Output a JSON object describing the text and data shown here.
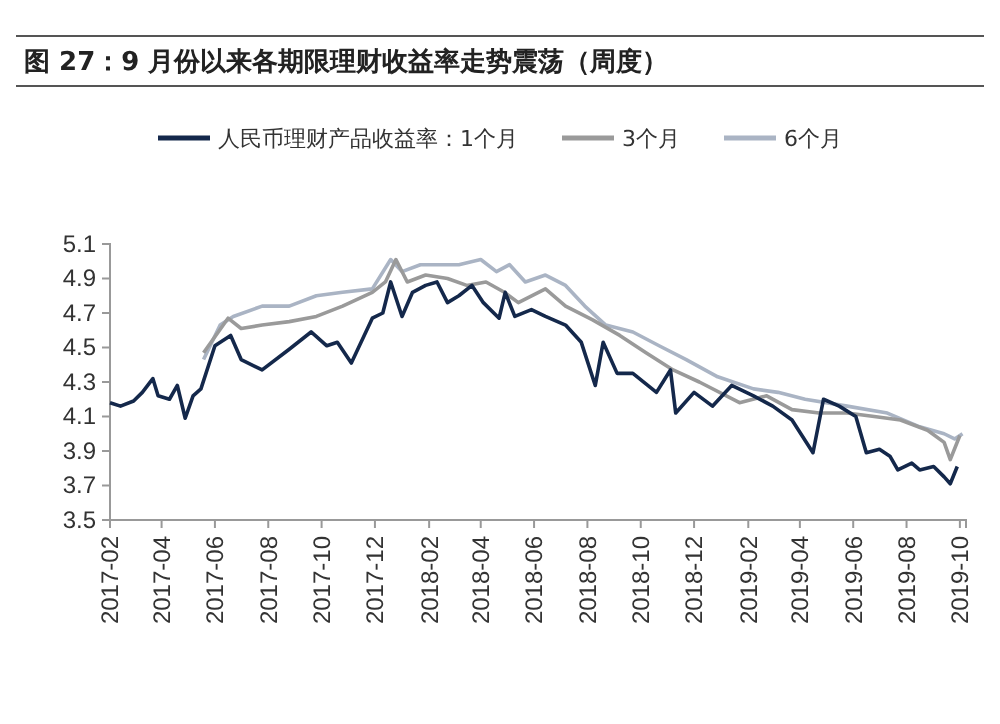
{
  "chart_data": {
    "type": "line",
    "title": "图 27：9 月份以来各期限理财收益率走势震荡（周度）",
    "legend": "top",
    "grid": false,
    "marker": "none",
    "line_style": "solid",
    "xlim": [
      "2017-02-01",
      "2019-10-08"
    ],
    "xticks": [
      "2017-02",
      "2017-04",
      "2017-06",
      "2017-08",
      "2017-10",
      "2017-12",
      "2018-02",
      "2018-04",
      "2018-06",
      "2018-08",
      "2018-10",
      "2018-12",
      "2019-02",
      "2019-04",
      "2019-06",
      "2019-08",
      "2019-10"
    ],
    "ylim": [
      3.5,
      5.1
    ],
    "yticks": [
      3.5,
      3.7,
      3.9,
      4.1,
      4.3,
      4.5,
      4.7,
      4.9,
      5.1
    ],
    "series": [
      {
        "name": "人民币理财产品收益率：1个月",
        "color": "#14284b",
        "x": [
          "2017-02-01",
          "2017-02-13",
          "2017-02-28",
          "2017-03-10",
          "2017-03-22",
          "2017-03-28",
          "2017-04-10",
          "2017-04-19",
          "2017-04-28",
          "2017-05-07",
          "2017-05-16",
          "2017-06-01",
          "2017-06-19",
          "2017-07-01",
          "2017-07-25",
          "2017-08-25",
          "2017-09-19",
          "2017-10-07",
          "2017-10-19",
          "2017-11-04",
          "2017-11-28",
          "2017-12-10",
          "2017-12-19",
          "2018-01-01",
          "2018-01-13",
          "2018-01-28",
          "2018-02-10",
          "2018-02-22",
          "2018-03-07",
          "2018-03-22",
          "2018-04-04",
          "2018-04-22",
          "2018-04-29",
          "2018-05-10",
          "2018-05-29",
          "2018-06-14",
          "2018-07-07",
          "2018-07-25",
          "2018-08-10",
          "2018-08-19",
          "2018-09-04",
          "2018-09-22",
          "2018-10-19",
          "2018-11-04",
          "2018-11-10",
          "2018-12-01",
          "2018-12-22",
          "2019-01-13",
          "2019-02-07",
          "2019-03-01",
          "2019-03-23",
          "2019-04-16",
          "2019-04-28",
          "2019-05-16",
          "2019-06-04",
          "2019-06-16",
          "2019-07-01",
          "2019-07-13",
          "2019-07-22",
          "2019-08-07",
          "2019-08-16",
          "2019-09-01",
          "2019-09-13",
          "2019-09-20",
          "2019-09-28"
        ],
        "values": [
          4.18,
          4.16,
          4.19,
          4.24,
          4.32,
          4.22,
          4.2,
          4.28,
          4.09,
          4.22,
          4.26,
          4.51,
          4.57,
          4.43,
          4.37,
          4.49,
          4.59,
          4.51,
          4.53,
          4.41,
          4.67,
          4.7,
          4.88,
          4.68,
          4.82,
          4.86,
          4.88,
          4.76,
          4.8,
          4.86,
          4.76,
          4.67,
          4.82,
          4.68,
          4.72,
          4.68,
          4.63,
          4.53,
          4.28,
          4.53,
          4.35,
          4.35,
          4.24,
          4.37,
          4.12,
          4.24,
          4.16,
          4.28,
          4.22,
          4.16,
          4.08,
          3.89,
          4.2,
          4.16,
          4.1,
          3.89,
          3.91,
          3.87,
          3.79,
          3.83,
          3.79,
          3.81,
          3.75,
          3.71,
          3.81
        ]
      },
      {
        "name": "3个月",
        "color": "#9a9a9a",
        "x": [
          "2017-05-19",
          "2017-06-16",
          "2017-07-01",
          "2017-07-25",
          "2017-08-25",
          "2017-09-25",
          "2017-10-25",
          "2017-11-28",
          "2017-12-13",
          "2017-12-25",
          "2018-01-07",
          "2018-01-28",
          "2018-02-22",
          "2018-03-16",
          "2018-04-07",
          "2018-04-28",
          "2018-05-14",
          "2018-06-14",
          "2018-07-07",
          "2018-08-07",
          "2018-09-07",
          "2018-10-07",
          "2018-11-07",
          "2018-12-07",
          "2019-01-22",
          "2019-02-22",
          "2019-03-23",
          "2019-04-23",
          "2019-05-25",
          "2019-06-25",
          "2019-07-25",
          "2019-08-25",
          "2019-09-13",
          "2019-09-20",
          "2019-10-01"
        ],
        "values": [
          4.47,
          4.67,
          4.61,
          4.63,
          4.65,
          4.68,
          4.74,
          4.82,
          4.88,
          5.01,
          4.88,
          4.92,
          4.9,
          4.86,
          4.88,
          4.82,
          4.76,
          4.84,
          4.74,
          4.66,
          4.57,
          4.47,
          4.37,
          4.3,
          4.18,
          4.22,
          4.14,
          4.12,
          4.12,
          4.1,
          4.08,
          4.02,
          3.95,
          3.85,
          3.99
        ]
      },
      {
        "name": "6个月",
        "color": "#aab4c4",
        "x": [
          "2017-05-19",
          "2017-06-07",
          "2017-06-22",
          "2017-07-25",
          "2017-08-25",
          "2017-09-25",
          "2017-10-25",
          "2017-11-28",
          "2017-12-19",
          "2018-01-01",
          "2018-01-22",
          "2018-02-13",
          "2018-03-07",
          "2018-04-01",
          "2018-04-19",
          "2018-05-04",
          "2018-05-22",
          "2018-06-14",
          "2018-07-07",
          "2018-07-29",
          "2018-08-22",
          "2018-09-22",
          "2018-10-22",
          "2018-11-22",
          "2018-12-28",
          "2019-02-07",
          "2019-03-07",
          "2019-04-07",
          "2019-05-25",
          "2019-07-10",
          "2019-08-16",
          "2019-09-13",
          "2019-09-25",
          "2019-10-04"
        ],
        "values": [
          4.43,
          4.63,
          4.68,
          4.74,
          4.74,
          4.8,
          4.82,
          4.84,
          5.01,
          4.94,
          4.98,
          4.98,
          4.98,
          5.01,
          4.94,
          4.98,
          4.88,
          4.92,
          4.86,
          4.74,
          4.63,
          4.59,
          4.51,
          4.43,
          4.33,
          4.26,
          4.24,
          4.2,
          4.16,
          4.12,
          4.04,
          4.0,
          3.97,
          4.0
        ]
      }
    ]
  }
}
